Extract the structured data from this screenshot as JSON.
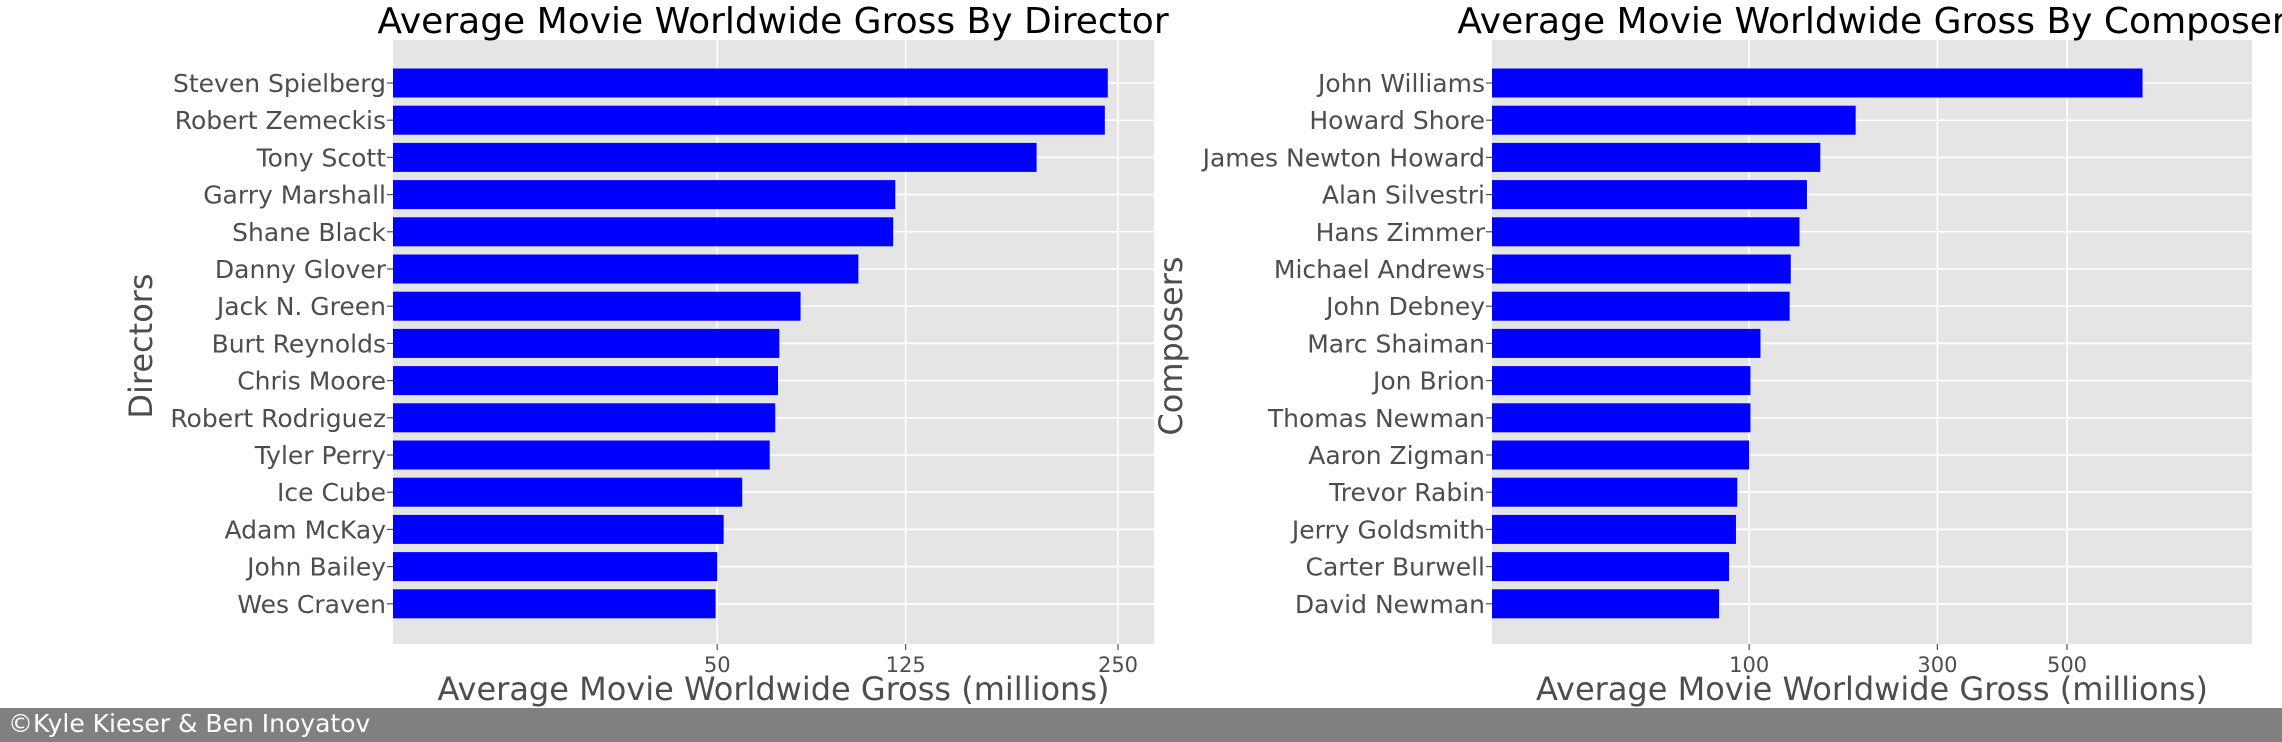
{
  "footer": {
    "copyright": "©Kyle Kieser & Ben Inoyatov"
  },
  "colors": {
    "bar": "#0000ff",
    "panel": "#e5e5e5",
    "grid": "#ffffff",
    "text": "#4d4d4d",
    "footer": "#808080"
  },
  "chart_data": [
    {
      "type": "bar",
      "orientation": "horizontal",
      "title": "Average Movie Worldwide Gross By Director",
      "xlabel": "Average Movie Worldwide Gross (millions)",
      "ylabel": "Directors",
      "xticks": [
        "50",
        "125",
        "250"
      ],
      "xtick_values": [
        50,
        125,
        250
      ],
      "scale": "sqrt",
      "grid": true,
      "categories": [
        "Steven Spielberg",
        "Robert Zemeckis",
        "Tony Scott",
        "Garry Marshall",
        "Shane Black",
        "Danny Glover",
        "Jack N. Green",
        "Burt Reynolds",
        "Chris Moore",
        "Robert Rodriguez",
        "Tyler Perry",
        "Ice Cube",
        "Adam McKay",
        "John Bailey",
        "Wes Craven"
      ],
      "values": [
        243,
        241,
        197,
        120,
        119,
        103,
        79,
        71,
        70.5,
        69.5,
        67.5,
        58,
        52,
        50,
        49.5
      ]
    },
    {
      "type": "bar",
      "orientation": "horizontal",
      "title": "Average Movie Worldwide Gross By Composer",
      "xlabel": "Average Movie Worldwide Gross (millions)",
      "ylabel": "Composers",
      "xticks": [
        "100",
        "300",
        "500"
      ],
      "xtick_values": [
        100,
        300,
        500
      ],
      "scale": "sqrt",
      "grid": true,
      "categories": [
        "John Williams",
        "Howard Shore",
        "James Newton Howard",
        "Alan Silvestri",
        "Hans Zimmer",
        "Michael Andrews",
        "John Debney",
        "Marc Shaiman",
        "Jon Brion",
        "Thomas Newman",
        "Aaron Zigman",
        "Trevor Rabin",
        "Jerry Goldsmith",
        "Carter Burwell",
        "David Newman"
      ],
      "values": [
        640,
        200,
        163,
        150,
        143,
        135,
        134,
        109,
        101,
        101,
        100,
        91,
        90,
        85,
        78
      ]
    }
  ]
}
